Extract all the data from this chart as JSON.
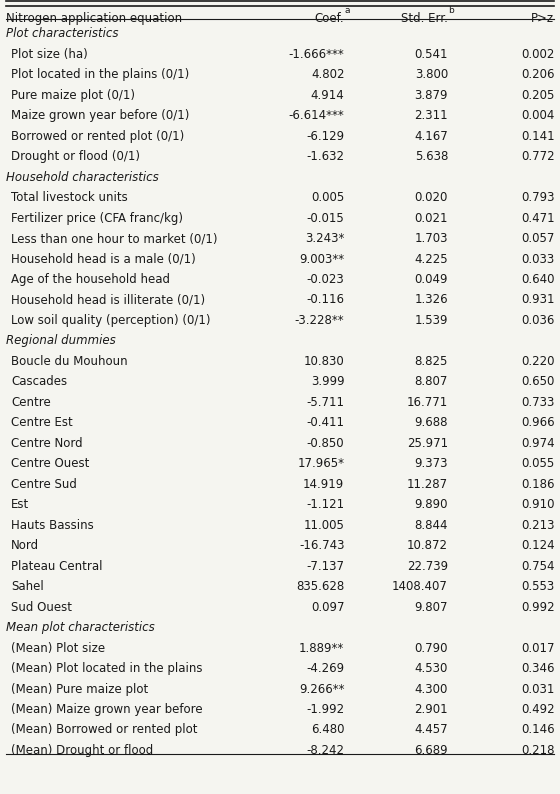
{
  "title": "Nitrogen application equation",
  "col_headers": [
    "Nitrogen application equation",
    "Coef.ᵃ",
    "Std. Err.ᵇ",
    "P>z"
  ],
  "superscript_a": "a",
  "superscript_b": "b",
  "rows": [
    {
      "label": "Plot characteristics",
      "coef": "",
      "se": "",
      "pz": "",
      "type": "section"
    },
    {
      "label": "Plot size (ha)",
      "coef": "-1.666***",
      "se": "0.541",
      "pz": "0.002",
      "type": "data"
    },
    {
      "label": "Plot located in the plains (0/1)",
      "coef": "4.802",
      "se": "3.800",
      "pz": "0.206",
      "type": "data"
    },
    {
      "label": "Pure maize plot (0/1)",
      "coef": "4.914",
      "se": "3.879",
      "pz": "0.205",
      "type": "data"
    },
    {
      "label": "Maize grown year before (0/1)",
      "coef": "-6.614***",
      "se": "2.311",
      "pz": "0.004",
      "type": "data"
    },
    {
      "label": "Borrowed or rented plot (0/1)",
      "coef": "-6.129",
      "se": "4.167",
      "pz": "0.141",
      "type": "data"
    },
    {
      "label": "Drought or flood (0/1)",
      "coef": "-1.632",
      "se": "5.638",
      "pz": "0.772",
      "type": "data"
    },
    {
      "label": "Household characteristics",
      "coef": "",
      "se": "",
      "pz": "",
      "type": "section"
    },
    {
      "label": "Total livestock units",
      "coef": "0.005",
      "se": "0.020",
      "pz": "0.793",
      "type": "data"
    },
    {
      "label": "Fertilizer price (CFA franc/kg)",
      "coef": "-0.015",
      "se": "0.021",
      "pz": "0.471",
      "type": "data"
    },
    {
      "label": "Less than one hour to market (0/1)",
      "coef": "3.243*",
      "se": "1.703",
      "pz": "0.057",
      "type": "data"
    },
    {
      "label": "Household head is a male (0/1)",
      "coef": "9.003**",
      "se": "4.225",
      "pz": "0.033",
      "type": "data"
    },
    {
      "label": "Age of the household head",
      "coef": "-0.023",
      "se": "0.049",
      "pz": "0.640",
      "type": "data"
    },
    {
      "label": "Household head is illiterate (0/1)",
      "coef": "-0.116",
      "se": "1.326",
      "pz": "0.931",
      "type": "data"
    },
    {
      "label": "Low soil quality (perception) (0/1)",
      "coef": "-3.228**",
      "se": "1.539",
      "pz": "0.036",
      "type": "data"
    },
    {
      "label": "Regional dummies",
      "coef": "",
      "se": "",
      "pz": "",
      "type": "section"
    },
    {
      "label": "Boucle du Mouhoun",
      "coef": "10.830",
      "se": "8.825",
      "pz": "0.220",
      "type": "data"
    },
    {
      "label": "Cascades",
      "coef": "3.999",
      "se": "8.807",
      "pz": "0.650",
      "type": "data"
    },
    {
      "label": "Centre",
      "coef": "-5.711",
      "se": "16.771",
      "pz": "0.733",
      "type": "data"
    },
    {
      "label": "Centre Est",
      "coef": "-0.411",
      "se": "9.688",
      "pz": "0.966",
      "type": "data"
    },
    {
      "label": "Centre Nord",
      "coef": "-0.850",
      "se": "25.971",
      "pz": "0.974",
      "type": "data"
    },
    {
      "label": "Centre Ouest",
      "coef": "17.965*",
      "se": "9.373",
      "pz": "0.055",
      "type": "data"
    },
    {
      "label": "Centre Sud",
      "coef": "14.919",
      "se": "11.287",
      "pz": "0.186",
      "type": "data"
    },
    {
      "label": "Est",
      "coef": "-1.121",
      "se": "9.890",
      "pz": "0.910",
      "type": "data"
    },
    {
      "label": "Hauts Bassins",
      "coef": "11.005",
      "se": "8.844",
      "pz": "0.213",
      "type": "data"
    },
    {
      "label": "Nord",
      "coef": "-16.743",
      "se": "10.872",
      "pz": "0.124",
      "type": "data"
    },
    {
      "label": "Plateau Central",
      "coef": "-7.137",
      "se": "22.739",
      "pz": "0.754",
      "type": "data"
    },
    {
      "label": "Sahel",
      "coef": "835.628",
      "se": "1408.407",
      "pz": "0.553",
      "type": "data"
    },
    {
      "label": "Sud Ouest",
      "coef": "0.097",
      "se": "9.807",
      "pz": "0.992",
      "type": "data"
    },
    {
      "label": "Mean plot characteristics",
      "coef": "",
      "se": "",
      "pz": "",
      "type": "section"
    },
    {
      "label": "(Mean) Plot size",
      "coef": "1.889**",
      "se": "0.790",
      "pz": "0.017",
      "type": "data"
    },
    {
      "label": "(Mean) Plot located in the plains",
      "coef": "-4.269",
      "se": "4.530",
      "pz": "0.346",
      "type": "data"
    },
    {
      "label": "(Mean) Pure maize plot",
      "coef": "9.266**",
      "se": "4.300",
      "pz": "0.031",
      "type": "data"
    },
    {
      "label": "(Mean) Maize grown year before",
      "coef": "-1.992",
      "se": "2.901",
      "pz": "0.492",
      "type": "data"
    },
    {
      "label": "(Mean) Borrowed or rented plot",
      "coef": "6.480",
      "se": "4.457",
      "pz": "0.146",
      "type": "data"
    },
    {
      "label": "(Mean) Drought or flood",
      "coef": "-8.242",
      "se": "6.689",
      "pz": "0.218",
      "type": "data"
    }
  ],
  "bg_color": "#f5f5f0",
  "text_color": "#1a1a1a",
  "header_line_color": "#333333",
  "font_size": 8.5,
  "section_font_size": 8.5
}
